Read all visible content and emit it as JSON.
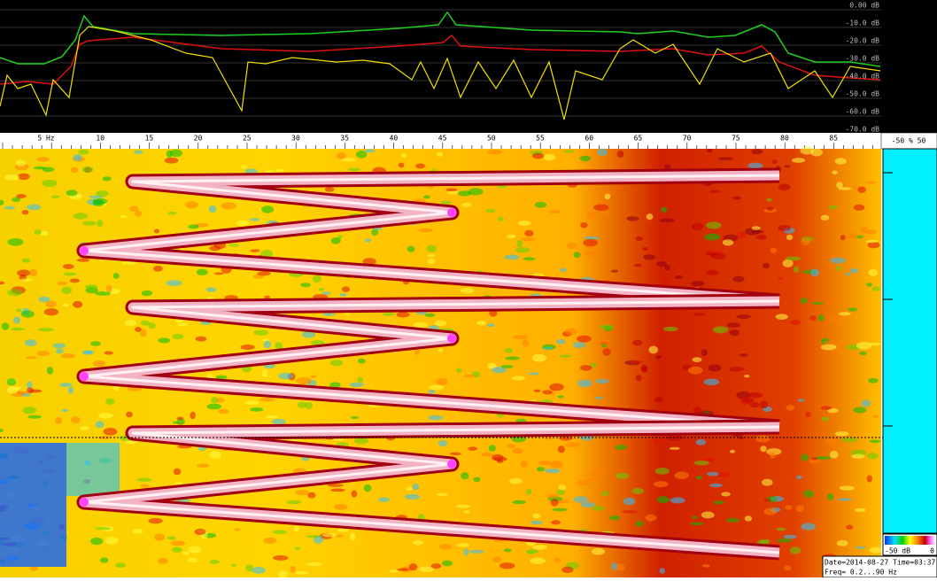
{
  "spectrum": {
    "db_labels": [
      "0.00 dB",
      "-10.0 dB",
      "-20.0 dB",
      "-30.0 dB",
      "-40.0 dB",
      "-50.0 dB",
      "-60.0 dB",
      "-70.0 dB"
    ]
  },
  "ruler": {
    "labels": [
      "5 Hz",
      "10",
      "15",
      "20",
      "25",
      "30",
      "35",
      "40",
      "45",
      "50",
      "55",
      "60",
      "65",
      "70",
      "75",
      "80",
      "85"
    ]
  },
  "side_scale": {
    "label": "-50 % 50"
  },
  "colorbar": {
    "min_label": "-50 dB",
    "max_label": "0"
  },
  "status": {
    "date": "Date=2014-08-27 Time=03:37",
    "freq": "Freq= 0.2...90 Hz"
  }
}
